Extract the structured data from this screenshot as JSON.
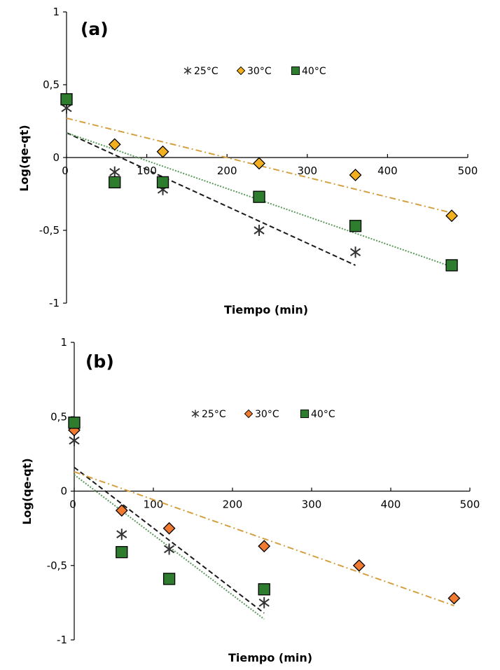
{
  "chart_data": [
    {
      "type": "scatter",
      "panel_label": "(a)",
      "xlabel": "Tiempo (min)",
      "ylabel": "Log(qe-qt)",
      "xlim": [
        0,
        500
      ],
      "ylim": [
        -1,
        1
      ],
      "x_ticks": [
        "0",
        "100",
        "200",
        "300",
        "400",
        "500"
      ],
      "y_ticks": [
        "1",
        "0,5",
        "0",
        "-0,5",
        "-1"
      ],
      "legend_placement": "top-center",
      "series": [
        {
          "name": "25°C",
          "marker": "asterisk",
          "color": "#333333",
          "x": [
            0,
            60,
            120,
            240,
            360
          ],
          "y": [
            0.34,
            -0.1,
            -0.22,
            -0.5,
            -0.65
          ],
          "fit": {
            "x": [
              0,
              360
            ],
            "y": [
              0.17,
              -0.74
            ],
            "style": "dashed",
            "color": "#1a1a1a"
          }
        },
        {
          "name": "30°C",
          "marker": "diamond",
          "color": "#f2b01e",
          "x": [
            60,
            120,
            240,
            360,
            480
          ],
          "y": [
            0.09,
            0.04,
            -0.04,
            -0.12,
            -0.4
          ],
          "fit": {
            "x": [
              0,
              480
            ],
            "y": [
              0.27,
              -0.38
            ],
            "style": "dashdot",
            "color": "#d4a040"
          }
        },
        {
          "name": "40°C",
          "marker": "square",
          "color": "#2e7d2e",
          "x": [
            0,
            60,
            120,
            240,
            360,
            480
          ],
          "y": [
            0.4,
            -0.17,
            -0.17,
            -0.27,
            -0.47,
            -0.74
          ],
          "fit": {
            "x": [
              0,
              480
            ],
            "y": [
              0.17,
              -0.75
            ],
            "style": "dotted",
            "color": "#5a9a5a"
          }
        }
      ]
    },
    {
      "type": "scatter",
      "panel_label": "(b)",
      "xlabel": "Tiempo (min)",
      "ylabel": "Log(qe-qt)",
      "xlim": [
        0,
        500
      ],
      "ylim": [
        -1,
        1
      ],
      "x_ticks": [
        "0",
        "100",
        "200",
        "300",
        "400",
        "500"
      ],
      "y_ticks": [
        "1",
        "0,5",
        "0",
        "-0,5",
        "-1"
      ],
      "legend_placement": "top-center",
      "series": [
        {
          "name": "25°C",
          "marker": "asterisk",
          "color": "#333333",
          "x": [
            0,
            60,
            120,
            240
          ],
          "y": [
            0.34,
            -0.29,
            -0.39,
            -0.75
          ],
          "fit": {
            "x": [
              0,
              240
            ],
            "y": [
              0.16,
              -0.82
            ],
            "style": "dashed",
            "color": "#1a1a1a"
          }
        },
        {
          "name": "30°C",
          "marker": "diamond",
          "color": "#f07a30",
          "x": [
            0,
            60,
            120,
            240,
            360,
            480
          ],
          "y": [
            0.41,
            -0.13,
            -0.25,
            -0.37,
            -0.5,
            -0.72
          ],
          "fit": {
            "x": [
              0,
              480
            ],
            "y": [
              0.13,
              -0.77
            ],
            "style": "dashdot",
            "color": "#d4a040"
          }
        },
        {
          "name": "40°C",
          "marker": "square",
          "color": "#2e7d2e",
          "x": [
            0,
            60,
            120,
            240
          ],
          "y": [
            0.46,
            -0.41,
            -0.59,
            -0.66
          ],
          "fit": {
            "x": [
              0,
              240
            ],
            "y": [
              0.11,
              -0.86
            ],
            "style": "dotted",
            "color": "#5a9a5a"
          }
        }
      ]
    }
  ]
}
